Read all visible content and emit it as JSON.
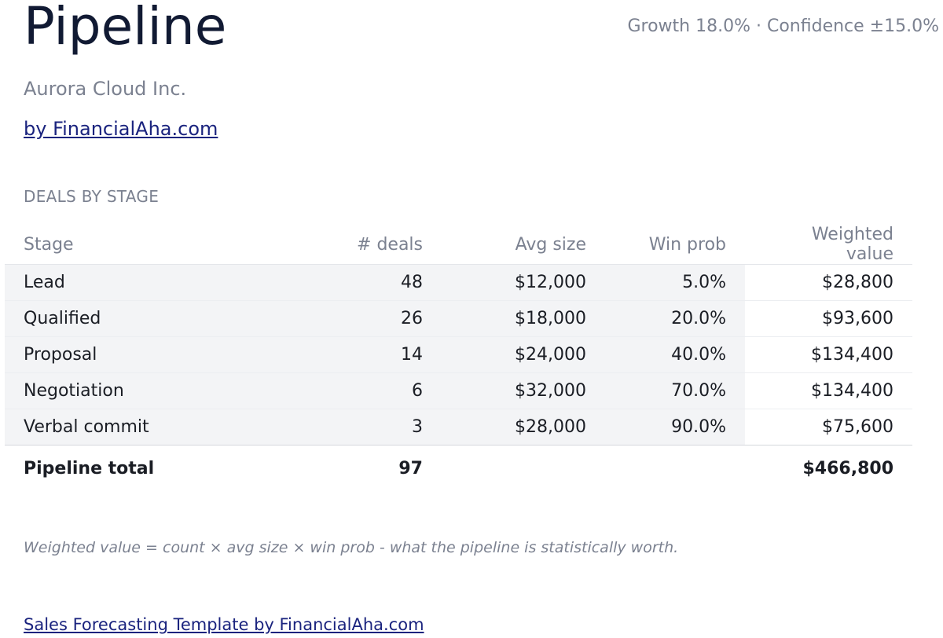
{
  "header": {
    "title": "Pipeline",
    "meta": "Growth 18.0% · Confidence ±15.0%",
    "company": "Aurora Cloud Inc.",
    "byline": "by FinancialAha.com"
  },
  "section": {
    "label": "DEALS BY STAGE"
  },
  "table": {
    "columns": [
      "Stage",
      "# deals",
      "Avg size",
      "Win prob",
      "Weighted value"
    ],
    "rows": [
      {
        "stage": "Lead",
        "deals": "48",
        "avg": "$12,000",
        "win": "5.0%",
        "weighted": "$28,800"
      },
      {
        "stage": "Qualified",
        "deals": "26",
        "avg": "$18,000",
        "win": "20.0%",
        "weighted": "$93,600"
      },
      {
        "stage": "Proposal",
        "deals": "14",
        "avg": "$24,000",
        "win": "40.0%",
        "weighted": "$134,400"
      },
      {
        "stage": "Negotiation",
        "deals": "6",
        "avg": "$32,000",
        "win": "70.0%",
        "weighted": "$134,400"
      },
      {
        "stage": "Verbal commit",
        "deals": "3",
        "avg": "$28,000",
        "win": "90.0%",
        "weighted": "$75,600"
      }
    ],
    "total": {
      "label": "Pipeline total",
      "deals": "97",
      "weighted": "$466,800"
    }
  },
  "note": "Weighted value = count × avg size × win prob - what the pipeline is statistically worth.",
  "footer": {
    "link": "Sales Forecasting Template by FinancialAha.com"
  }
}
